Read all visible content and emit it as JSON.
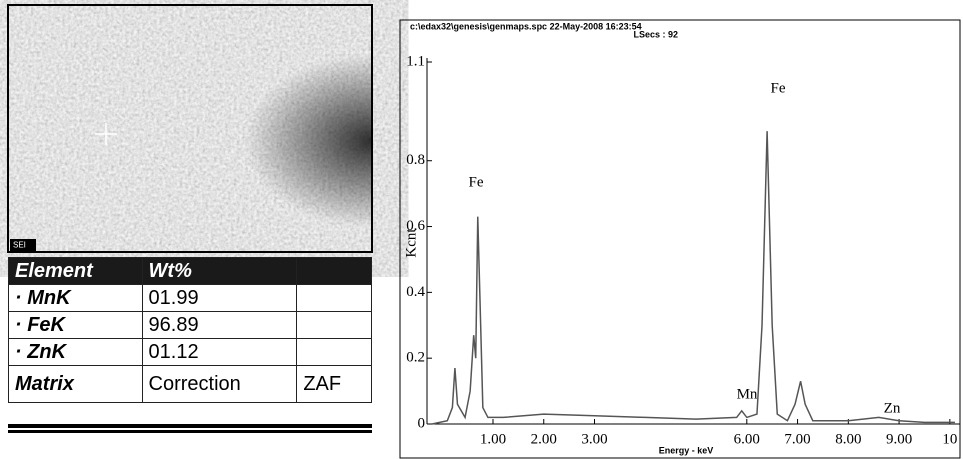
{
  "image": {
    "label": "SEI"
  },
  "table": {
    "header": [
      "Element",
      "Wt%"
    ],
    "rows": [
      [
        "· MnK",
        "01.99"
      ],
      [
        "· FeK",
        "96.89"
      ],
      [
        "· ZnK",
        "01.12"
      ],
      [
        "Matrix",
        "Correction",
        "ZAF"
      ]
    ]
  },
  "chart_data": {
    "type": "line",
    "title": "c:\\edax32\\genesis\\genmaps.spc  22-May-2008 16:23:54",
    "subtitle": "LSecs :  92",
    "x_label": "Energy - keV",
    "y_label": "Kcnt",
    "annotations": [
      "Fe",
      "Fe",
      "Mn",
      "Zn"
    ],
    "x": [
      -0.2,
      0.1,
      0.2,
      0.25,
      0.3,
      0.45,
      0.55,
      0.62,
      0.66,
      0.7,
      0.74,
      0.8,
      0.9,
      1.2,
      2,
      3,
      4,
      5,
      5.8,
      5.9,
      6.0,
      6.2,
      6.3,
      6.4,
      6.5,
      6.6,
      6.8,
      6.95,
      7.06,
      7.15,
      7.3,
      7.6,
      8,
      8.6,
      9,
      9.5,
      10.1
    ],
    "series": [
      {
        "color": "#555555",
        "values": [
          0,
          0.01,
          0.05,
          0.17,
          0.06,
          0.02,
          0.1,
          0.27,
          0.2,
          0.63,
          0.4,
          0.05,
          0.02,
          0.02,
          0.03,
          0.025,
          0.02,
          0.015,
          0.02,
          0.04,
          0.02,
          0.03,
          0.3,
          0.89,
          0.3,
          0.03,
          0.01,
          0.06,
          0.13,
          0.06,
          0.01,
          0.01,
          0.01,
          0.02,
          0.01,
          0.005,
          0.005
        ]
      }
    ],
    "xlim": [
      -0.3,
      10.2
    ],
    "ylim": [
      0,
      1.1
    ],
    "xticks": [
      {
        "value": 1,
        "label": "1.00"
      },
      {
        "value": 2,
        "label": "2.00"
      },
      {
        "value": 3,
        "label": "3.00"
      },
      {
        "value": 6,
        "label": "6.00"
      },
      {
        "value": 7,
        "label": "7.00"
      },
      {
        "value": 8,
        "label": "8.00"
      },
      {
        "value": 9,
        "label": "9.00"
      },
      10
    ],
    "yticks": [
      0,
      0.2,
      0.4,
      0.6,
      0.8,
      1.1
    ]
  }
}
